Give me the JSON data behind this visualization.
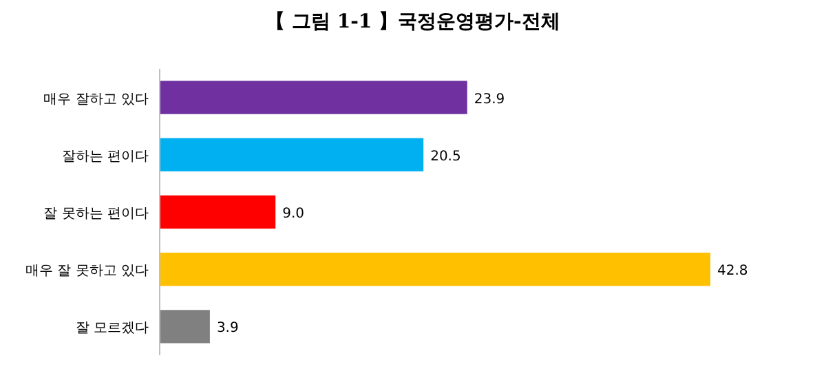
{
  "chart_data": {
    "type": "bar",
    "orientation": "horizontal",
    "title": "【 그림 1-1 】국정운영평가-전체",
    "categories": [
      "매우 잘하고 있다",
      "잘하는 편이다",
      "잘 못하는 편이다",
      "매우 잘 못하고 있다",
      "잘 모르겠다"
    ],
    "values": [
      23.9,
      20.5,
      9.0,
      42.8,
      3.9
    ],
    "colors": [
      "#7030a0",
      "#00b0f0",
      "#ff0000",
      "#ffc000",
      "#808080"
    ],
    "value_labels": [
      "23.9",
      "20.5",
      "9.0",
      "42.8",
      "3.9"
    ]
  }
}
